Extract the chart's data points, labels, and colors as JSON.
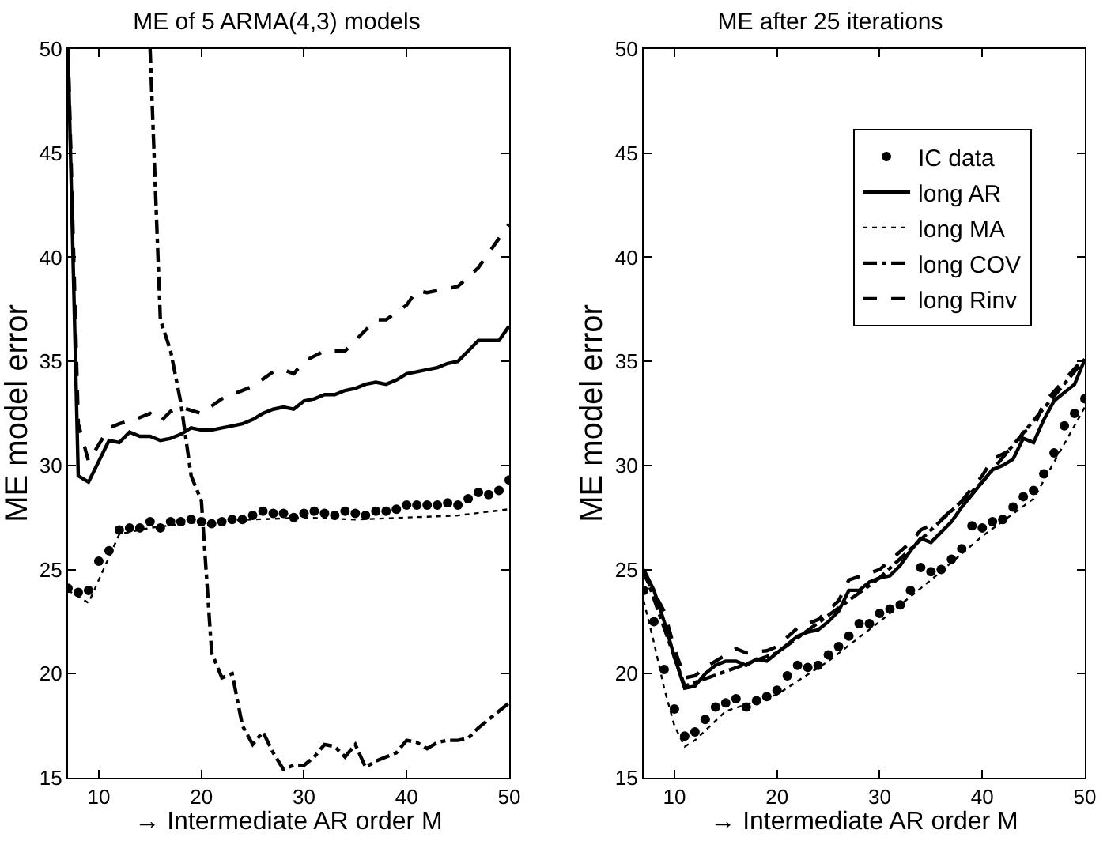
{
  "chart_data": [
    {
      "type": "line",
      "title": "ME of 5 ARMA(4,3) models",
      "xlabel": "→ Intermediate AR order M",
      "ylabel": "ME model error",
      "xlim": [
        7,
        50
      ],
      "ylim": [
        15,
        50
      ],
      "xticks": [
        10,
        20,
        30,
        40,
        50
      ],
      "yticks": [
        15,
        20,
        25,
        30,
        35,
        40,
        45,
        50
      ],
      "grid": false,
      "legend": false,
      "series": [
        {
          "type": "scatter",
          "marker": "circle",
          "color": "#000000",
          "x": [
            7,
            8,
            9,
            10,
            11,
            12,
            13,
            14,
            15,
            16,
            17,
            18,
            19,
            20,
            21,
            22,
            23,
            24,
            25,
            26,
            27,
            28,
            29,
            30,
            31,
            32,
            33,
            34,
            35,
            36,
            37,
            38,
            39,
            40,
            41,
            42,
            43,
            44,
            45,
            46,
            47,
            48,
            49,
            50
          ],
          "values": [
            24.1,
            23.9,
            24.0,
            25.4,
            25.9,
            26.9,
            27.0,
            27.0,
            27.3,
            27.0,
            27.3,
            27.3,
            27.4,
            27.3,
            27.2,
            27.3,
            27.4,
            27.4,
            27.6,
            27.8,
            27.7,
            27.7,
            27.5,
            27.7,
            27.8,
            27.7,
            27.6,
            27.8,
            27.7,
            27.6,
            27.8,
            27.8,
            27.9,
            28.1,
            28.1,
            28.1,
            28.1,
            28.2,
            28.1,
            28.4,
            28.7,
            28.6,
            28.8,
            29.3
          ]
        },
        {
          "line_style": "solid",
          "color": "#000000",
          "x": [
            7,
            8,
            9,
            10,
            11,
            12,
            13,
            14,
            15,
            16,
            17,
            18,
            19,
            20,
            21,
            22,
            23,
            24,
            25,
            26,
            27,
            28,
            29,
            30,
            31,
            32,
            33,
            34,
            35,
            36,
            37,
            38,
            39,
            40,
            41,
            42,
            43,
            44,
            45,
            46,
            47,
            48,
            49,
            50
          ],
          "values": [
            50,
            29.5,
            29.2,
            30.2,
            31.2,
            31.1,
            31.6,
            31.4,
            31.4,
            31.2,
            31.3,
            31.5,
            31.8,
            31.7,
            31.7,
            31.8,
            31.9,
            32.0,
            32.2,
            32.5,
            32.7,
            32.8,
            32.7,
            33.1,
            33.2,
            33.4,
            33.4,
            33.6,
            33.7,
            33.9,
            34.0,
            33.9,
            34.1,
            34.4,
            34.5,
            34.6,
            34.7,
            34.9,
            35.0,
            35.5,
            36.0,
            36.0,
            36.0,
            36.7
          ]
        },
        {
          "line_style": "dotted",
          "color": "#000000",
          "x": [
            7,
            9,
            10,
            12,
            15,
            20,
            25,
            30,
            35,
            40,
            45,
            50
          ],
          "values": [
            24.0,
            23.4,
            24.5,
            26.7,
            27.0,
            27.3,
            27.4,
            27.5,
            27.4,
            27.5,
            27.6,
            27.9
          ]
        },
        {
          "line_style": "dashdot",
          "color": "#000000",
          "x": [
            15,
            16,
            17,
            18,
            19,
            20,
            21,
            22,
            23,
            24,
            25,
            26,
            27,
            28,
            29,
            30,
            31,
            32,
            33,
            34,
            35,
            36,
            37,
            38,
            39,
            40,
            41,
            42,
            43,
            44,
            45,
            46,
            47,
            48,
            49,
            50
          ],
          "values": [
            50,
            37,
            35.5,
            33,
            29.5,
            28.3,
            21,
            19.8,
            20,
            17.5,
            16.6,
            17.2,
            16.2,
            15.4,
            15.6,
            15.6,
            16,
            16.6,
            16.5,
            16.0,
            16.6,
            15.5,
            15.8,
            16.0,
            16.2,
            16.8,
            16.7,
            16.4,
            16.7,
            16.8,
            16.8,
            16.9,
            17.4,
            17.8,
            18.2,
            18.6
          ]
        },
        {
          "line_style": "dashed",
          "color": "#000000",
          "x": [
            7,
            8,
            9,
            10,
            11,
            12,
            14,
            15,
            16,
            17,
            18,
            20,
            22,
            25,
            27,
            28,
            29,
            30,
            32,
            34,
            35,
            37,
            38,
            40,
            41,
            42,
            44,
            45,
            47,
            50
          ],
          "values": [
            50,
            32,
            30.2,
            31.0,
            31.8,
            32.0,
            32.3,
            32.5,
            32.1,
            32.6,
            32.8,
            32.5,
            33.2,
            33.8,
            34.5,
            34.6,
            34.4,
            35.0,
            35.5,
            35.5,
            36.0,
            37.0,
            37.0,
            37.7,
            38.4,
            38.3,
            38.5,
            38.6,
            39.5,
            41.6
          ]
        }
      ]
    },
    {
      "type": "line",
      "title": "ME after 25 iterations",
      "xlabel": "→ Intermediate AR order M",
      "ylabel": "ME model error",
      "xlim": [
        7,
        50
      ],
      "ylim": [
        15,
        50
      ],
      "xticks": [
        10,
        20,
        30,
        40,
        50
      ],
      "yticks": [
        15,
        20,
        25,
        30,
        35,
        40,
        45,
        50
      ],
      "grid": false,
      "legend": "top right",
      "series": [
        {
          "name": "IC data",
          "type": "scatter",
          "marker": "circle",
          "color": "#000000",
          "x": [
            7,
            8,
            9,
            10,
            11,
            12,
            13,
            14,
            15,
            16,
            17,
            18,
            19,
            20,
            21,
            22,
            23,
            24,
            25,
            26,
            27,
            28,
            29,
            30,
            31,
            32,
            33,
            34,
            35,
            36,
            37,
            38,
            39,
            40,
            41,
            42,
            43,
            44,
            45,
            46,
            47,
            48,
            49,
            50
          ],
          "values": [
            24.0,
            22.5,
            20.2,
            18.3,
            17.0,
            17.2,
            17.8,
            18.4,
            18.6,
            18.8,
            18.4,
            18.7,
            18.9,
            19.2,
            19.9,
            20.4,
            20.3,
            20.4,
            20.9,
            21.3,
            21.8,
            22.4,
            22.4,
            22.9,
            23.1,
            23.3,
            24.0,
            25.1,
            24.9,
            25.0,
            25.5,
            26.0,
            27.1,
            27.0,
            27.3,
            27.4,
            28.0,
            28.5,
            28.8,
            29.6,
            30.6,
            31.9,
            32.5,
            33.2
          ]
        },
        {
          "name": "long AR",
          "line_style": "solid",
          "color": "#000000",
          "x": [
            7,
            8,
            9,
            10,
            11,
            12,
            13,
            14,
            15,
            16,
            17,
            18,
            19,
            20,
            21,
            22,
            23,
            24,
            25,
            26,
            27,
            28,
            29,
            30,
            31,
            32,
            33,
            34,
            35,
            36,
            37,
            38,
            39,
            40,
            41,
            42,
            43,
            44,
            45,
            46,
            47,
            48,
            49,
            50
          ],
          "values": [
            25.0,
            24.0,
            22.5,
            20.8,
            19.3,
            19.4,
            20.0,
            20.4,
            20.6,
            20.6,
            20.4,
            20.7,
            20.6,
            21.0,
            21.4,
            21.8,
            22.0,
            22.1,
            22.5,
            23.0,
            24.0,
            24.0,
            24.4,
            24.6,
            24.7,
            25.2,
            25.9,
            26.5,
            26.3,
            26.8,
            27.3,
            28.0,
            28.6,
            29.2,
            29.8,
            30.0,
            30.3,
            31.3,
            31.1,
            32.2,
            33.1,
            33.5,
            33.9,
            35.1
          ]
        },
        {
          "name": "long MA",
          "line_style": "dotted",
          "color": "#000000",
          "x": [
            7,
            8,
            9,
            10,
            11,
            12,
            15,
            20,
            25,
            30,
            35,
            40,
            45,
            50
          ],
          "values": [
            23.5,
            21.5,
            19.3,
            17.5,
            16.5,
            16.8,
            18.2,
            19.0,
            20.6,
            22.5,
            24.5,
            26.6,
            28.4,
            32.8
          ]
        },
        {
          "name": "long COV",
          "line_style": "dashdot",
          "color": "#000000",
          "x": [
            7,
            11,
            20,
            30,
            40,
            50
          ],
          "values": [
            25.0,
            19.4,
            21.0,
            24.6,
            29.2,
            35.1
          ]
        },
        {
          "name": "long Rinv",
          "line_style": "dashed",
          "color": "#000000",
          "x": [
            7,
            9,
            10,
            11,
            12,
            13,
            15,
            16,
            17,
            19,
            20,
            22,
            24,
            26,
            27,
            30,
            33,
            34,
            36,
            38,
            40,
            41,
            43,
            44,
            45,
            46,
            48,
            50
          ],
          "values": [
            24.8,
            23.0,
            21.2,
            19.8,
            19.9,
            20.3,
            20.9,
            21.2,
            21.0,
            21.1,
            21.3,
            22.2,
            22.6,
            23.5,
            24.5,
            25.0,
            26.3,
            26.9,
            27.4,
            28.3,
            29.5,
            30.3,
            30.8,
            31.6,
            31.8,
            33.0,
            34.1,
            35.2
          ]
        }
      ]
    }
  ]
}
